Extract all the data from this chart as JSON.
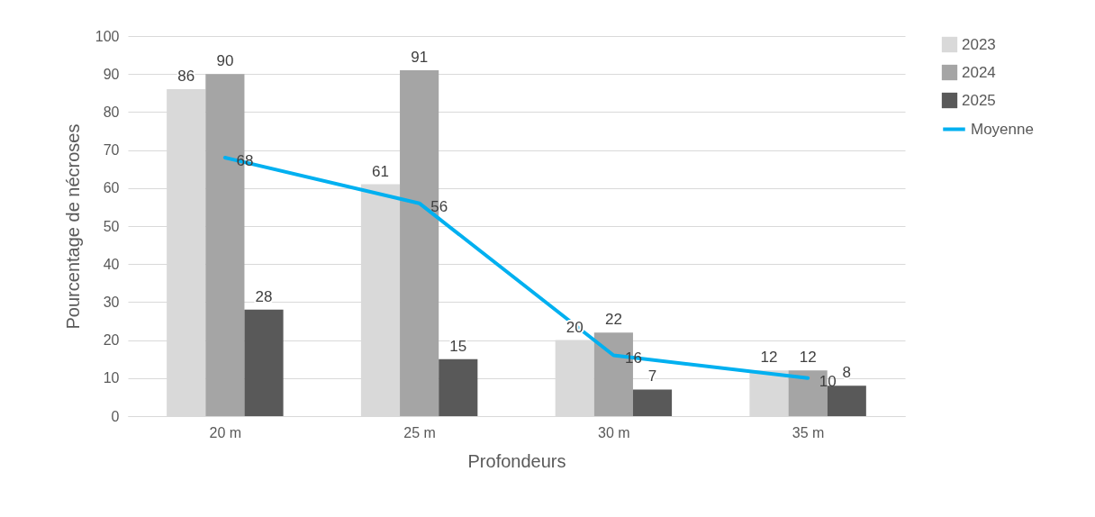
{
  "chart_data": {
    "type": "bar",
    "xlabel": "Profondeurs",
    "ylabel": "Pourcentage de nécroses",
    "categories": [
      "20 m",
      "25 m",
      "30 m",
      "35 m"
    ],
    "series": [
      {
        "name": "2023",
        "color": "#d9d9d9",
        "values": [
          86,
          61,
          20,
          12
        ]
      },
      {
        "name": "2024",
        "color": "#a5a5a5",
        "values": [
          90,
          91,
          22,
          12
        ]
      },
      {
        "name": "2025",
        "color": "#595959",
        "values": [
          28,
          15,
          7,
          8
        ]
      },
      {
        "name": "Moyenne",
        "type": "line",
        "color": "#00b0f0",
        "values": [
          68,
          56,
          16,
          10
        ]
      }
    ],
    "ylim": [
      0,
      100
    ],
    "yticks": [
      0,
      10,
      20,
      30,
      40,
      50,
      60,
      70,
      80,
      90,
      100
    ],
    "grid": "y",
    "legend": "right",
    "data_labels": true
  }
}
